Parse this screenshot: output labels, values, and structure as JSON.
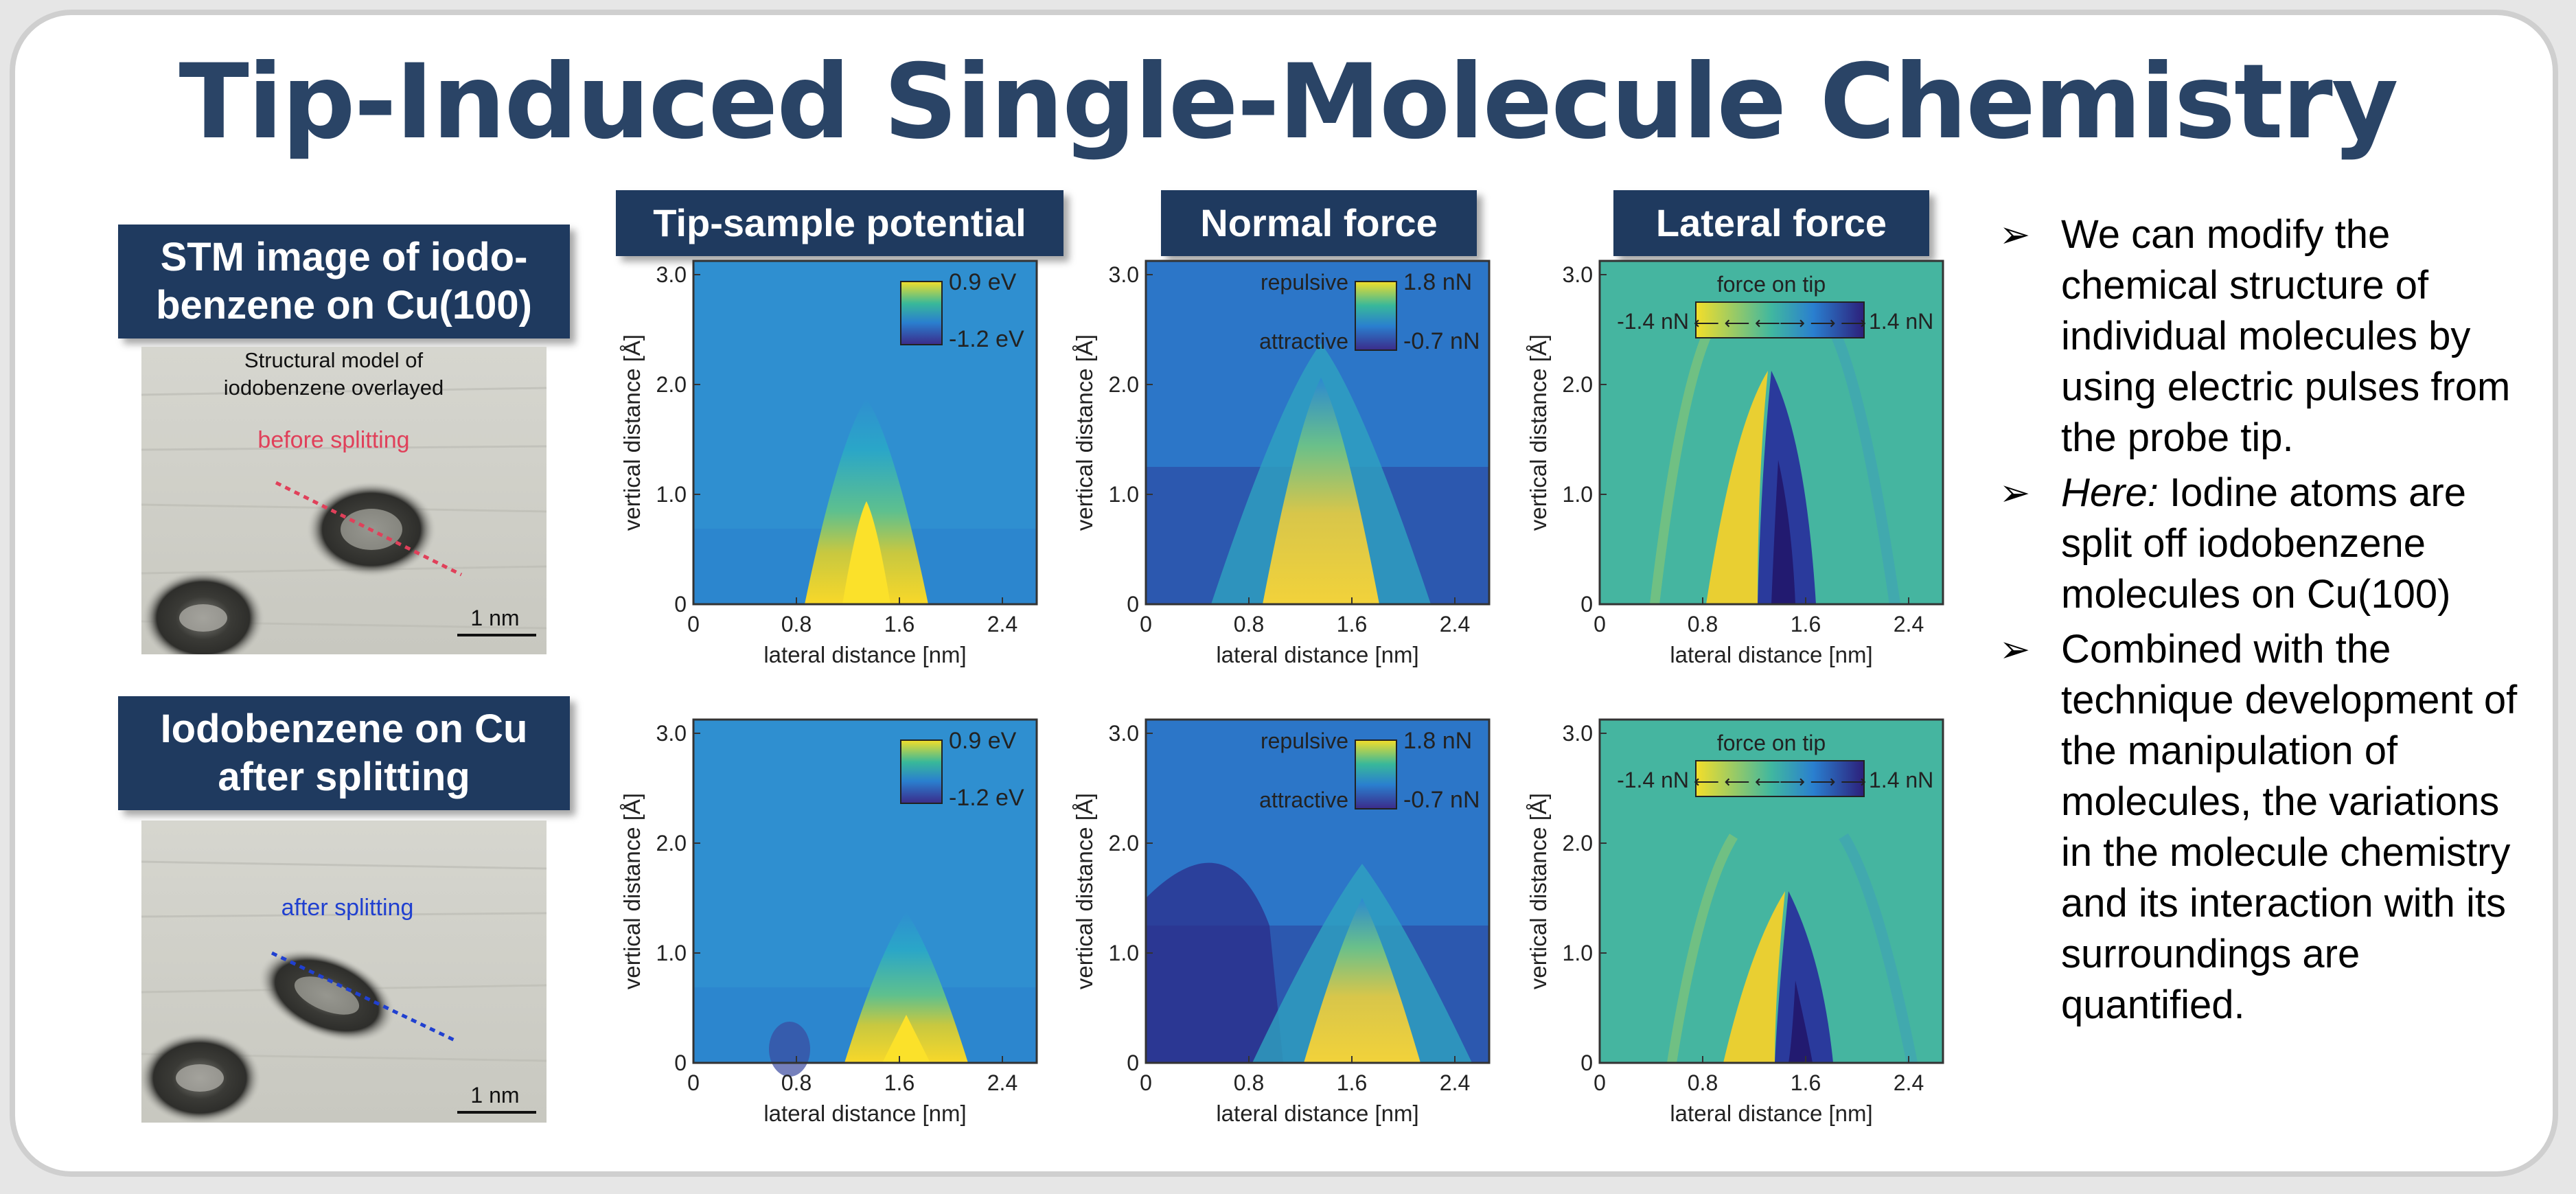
{
  "title": "Tip-Induced Single-Molecule Chemistry",
  "left": {
    "top_label": "STM image of iodo-benzene on Cu(100)",
    "top_image": {
      "caption": "Structural model of iodobenzene overlayed",
      "line_label": "before splitting",
      "scale_bar": "1 nm"
    },
    "bottom_label": "Iodobenzene on Cu after splitting",
    "bottom_image": {
      "line_label": "after splitting",
      "scale_bar": "1 nm"
    }
  },
  "column_headers": [
    "Tip-sample potential",
    "Normal force",
    "Lateral force"
  ],
  "axes": {
    "xlabel": "lateral distance [nm]",
    "ylabel": "vertical distance [Å]",
    "xticks": [
      "0",
      "0.8",
      "1.6",
      "2.4"
    ],
    "yticks": [
      "0",
      "1.0",
      "2.0",
      "3.0"
    ]
  },
  "colorbars": {
    "potential": {
      "max": "0.9 eV",
      "min": "-1.2 eV"
    },
    "normal": {
      "top_word": "repulsive",
      "bottom_word": "attractive",
      "max": "1.8 nN",
      "min": "-0.7 nN"
    },
    "lateral": {
      "title": "force on tip",
      "min": "-1.4 nN",
      "max": "1.4 nN"
    }
  },
  "bullets": [
    {
      "italic": "",
      "text": "We can modify the chemical structure of individual molecules by using electric pulses from the probe tip."
    },
    {
      "italic": "Here:",
      "text": " Iodine atoms are split off iodobenzene molecules on Cu(100)"
    },
    {
      "italic": "",
      "text": "Combined with the technique development of the manipulation of molecules, the variations in the molecule chemistry and its interaction with its surroundings are quantified."
    }
  ],
  "colors": {
    "title": "#2a4466",
    "label_bg": "#1f3a5f",
    "before_line": "#e0405a",
    "after_line": "#2040d0"
  }
}
